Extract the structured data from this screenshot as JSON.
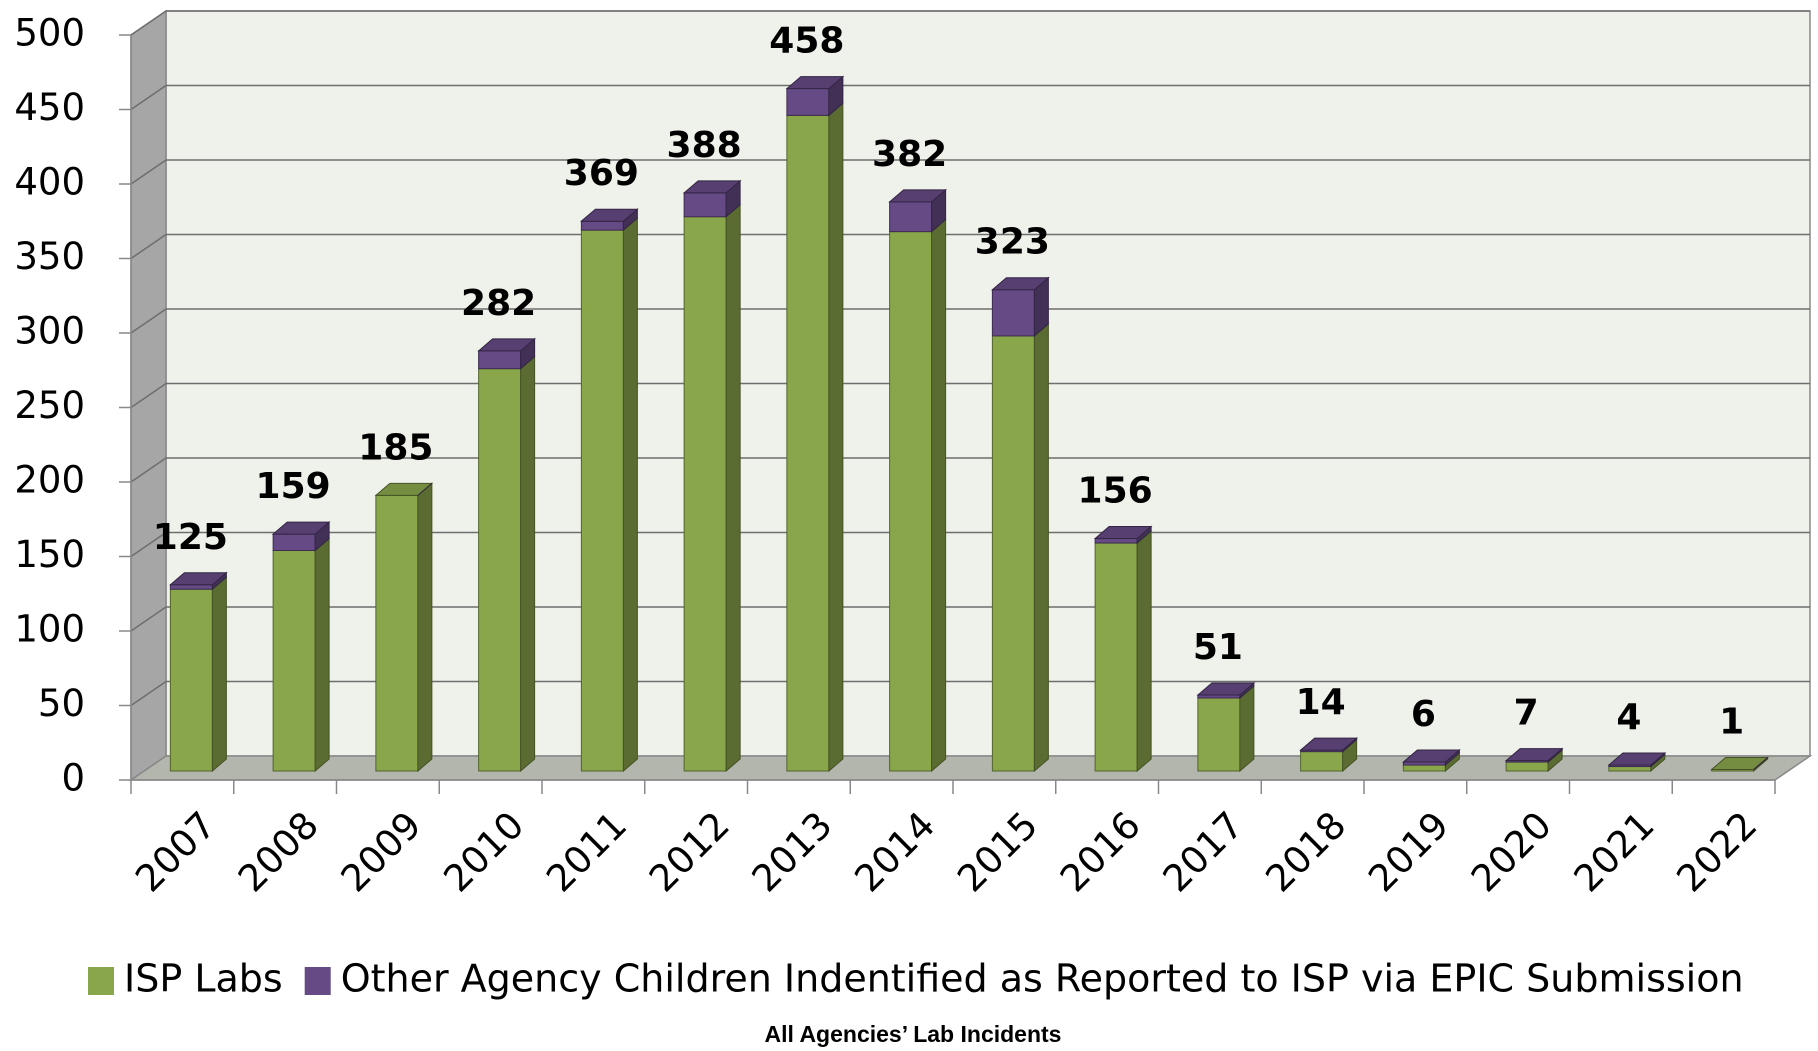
{
  "chart_data": {
    "type": "bar3d_stacked",
    "title": "All Agencies’ Lab Incidents",
    "categories": [
      "2007",
      "2008",
      "2009",
      "2010",
      "2011",
      "2012",
      "2013",
      "2014",
      "2015",
      "2016",
      "2017",
      "2018",
      "2019",
      "2020",
      "2021",
      "2022"
    ],
    "series": [
      {
        "name": "ISP Labs",
        "color": "#8aa64b",
        "values": [
          122,
          148,
          185,
          270,
          363,
          372,
          440,
          362,
          292,
          153,
          49,
          13,
          4,
          6,
          3,
          1
        ]
      },
      {
        "name": "Other Agency Children Indentified as Reported to ISP via EPIC Submission",
        "color": "#664a86",
        "values": [
          3,
          11,
          0,
          12,
          6,
          16,
          18,
          20,
          31,
          3,
          2,
          1,
          2,
          1,
          1,
          0
        ]
      }
    ],
    "totals": [
      125,
      159,
      185,
      282,
      369,
      388,
      458,
      382,
      323,
      156,
      51,
      14,
      6,
      7,
      4,
      1
    ],
    "ylim": [
      0,
      500
    ],
    "yticks": [
      0,
      50,
      100,
      150,
      200,
      250,
      300,
      350,
      400,
      450,
      500
    ],
    "grid": true
  }
}
